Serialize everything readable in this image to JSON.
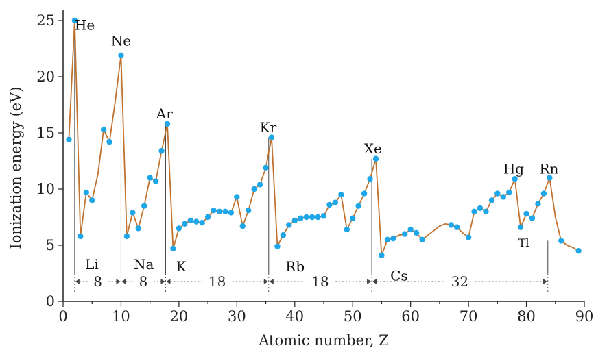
{
  "chart_data": {
    "type": "line",
    "xlabel": "Atomic number, Z",
    "ylabel": "Ionization energy (eV)",
    "xlim": [
      0,
      90
    ],
    "ylim": [
      0,
      26
    ],
    "xticks": [
      0,
      10,
      20,
      30,
      40,
      50,
      60,
      70,
      80,
      90
    ],
    "yticks": [
      0,
      5,
      10,
      15,
      20,
      25
    ],
    "grid": false,
    "colors": {
      "line": "#c0722e",
      "points": "#1ea7e8"
    },
    "series": [
      {
        "x": [
          1,
          2,
          3,
          4,
          5,
          6,
          7,
          8,
          9,
          10,
          11,
          12,
          13,
          14,
          15,
          16,
          17,
          18,
          19,
          20,
          21,
          22,
          23,
          24,
          25,
          26,
          27,
          28,
          29,
          30,
          31,
          32,
          33,
          34,
          35,
          36,
          37,
          38,
          39,
          40,
          41,
          42,
          43,
          44,
          45,
          46,
          47,
          48,
          49,
          50,
          51,
          52,
          53,
          54,
          55,
          56,
          57,
          58,
          59,
          60,
          61,
          62,
          63,
          64,
          65,
          66,
          67,
          68,
          69,
          70,
          71,
          72,
          73,
          74,
          75,
          76,
          77,
          78,
          79,
          80,
          81,
          82,
          83,
          84,
          85,
          86,
          87,
          88,
          89
        ],
        "y": [
          14.4,
          25.0,
          5.8,
          9.7,
          9.0,
          11.3,
          15.3,
          14.2,
          17.8,
          21.9,
          5.8,
          7.9,
          6.5,
          8.5,
          11.0,
          10.7,
          13.4,
          15.8,
          4.7,
          6.5,
          6.9,
          7.2,
          7.1,
          7.0,
          7.5,
          8.1,
          8.0,
          8.0,
          7.9,
          9.3,
          6.7,
          8.1,
          10.0,
          10.4,
          11.9,
          14.6,
          4.9,
          5.9,
          6.8,
          7.2,
          7.4,
          7.5,
          7.5,
          7.5,
          7.6,
          8.6,
          8.8,
          9.5,
          6.4,
          7.4,
          8.5,
          9.6,
          10.9,
          12.7,
          4.1,
          5.5,
          5.6,
          5.9,
          6.0,
          6.4,
          6.1,
          5.5,
          5.9,
          6.3,
          6.7,
          6.9,
          6.8,
          6.6,
          6.1,
          5.7,
          8.0,
          8.3,
          8.0,
          9.0,
          9.6,
          9.3,
          9.7,
          10.9,
          6.6,
          7.8,
          7.4,
          8.7,
          9.6,
          11.0,
          7.5,
          5.4,
          5.0,
          4.8,
          4.5
        ],
        "points_x": [
          1,
          2,
          3,
          4,
          5,
          7,
          8,
          10,
          11,
          12,
          13,
          14,
          15,
          16,
          17,
          18,
          19,
          20,
          21,
          22,
          23,
          24,
          25,
          26,
          27,
          28,
          29,
          30,
          31,
          32,
          33,
          34,
          35,
          36,
          37,
          38,
          39,
          40,
          41,
          42,
          43,
          44,
          45,
          46,
          47,
          48,
          49,
          50,
          51,
          52,
          53,
          54,
          55,
          56,
          57,
          59,
          60,
          61,
          62,
          67,
          68,
          70,
          71,
          72,
          73,
          74,
          75,
          76,
          77,
          78,
          79,
          80,
          81,
          82,
          83,
          84,
          86,
          89
        ]
      }
    ],
    "element_labels": [
      {
        "text": "He",
        "z": 2,
        "y": 24.6,
        "size": "normal"
      },
      {
        "text": "Ne",
        "z": 10,
        "y": 23.2,
        "size": "normal"
      },
      {
        "text": "Ar",
        "z": 17.5,
        "y": 16.7,
        "size": "normal"
      },
      {
        "text": "Kr",
        "z": 35.4,
        "y": 15.5,
        "size": "normal"
      },
      {
        "text": "Xe",
        "z": 53.5,
        "y": 13.6,
        "size": "normal"
      },
      {
        "text": "Hg",
        "z": 77.8,
        "y": 11.8,
        "size": "normal"
      },
      {
        "text": "Rn",
        "z": 83.9,
        "y": 11.8,
        "size": "normal"
      },
      {
        "text": "Li",
        "z": 3.8,
        "y": 3.3,
        "size": "normal"
      },
      {
        "text": "Na",
        "z": 12.2,
        "y": 3.3,
        "size": "normal"
      },
      {
        "text": "K",
        "z": 19.5,
        "y": 3.1,
        "size": "normal"
      },
      {
        "text": "Rb",
        "z": 38.4,
        "y": 3.1,
        "size": "normal"
      },
      {
        "text": "Cs",
        "z": 56.5,
        "y": 2.3,
        "size": "normal"
      },
      {
        "text": "Tl",
        "z": 78.6,
        "y": 5.3,
        "size": "small"
      }
    ],
    "period_spans": [
      {
        "label": "8",
        "from": 2,
        "to": 10
      },
      {
        "label": "8",
        "from": 10,
        "to": 18
      },
      {
        "label": "18",
        "from": 18,
        "to": 36
      },
      {
        "label": "18",
        "from": 36,
        "to": 54
      },
      {
        "label": "32",
        "from": 54,
        "to": 86
      }
    ]
  }
}
